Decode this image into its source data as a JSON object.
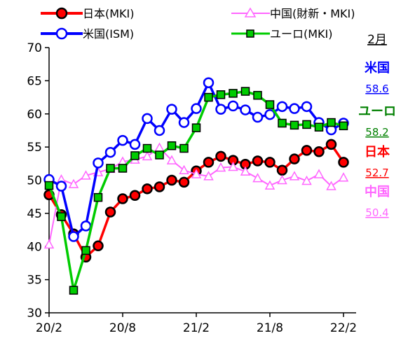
{
  "chart_data": {
    "type": "line",
    "ylim": [
      30,
      70
    ],
    "yticks": [
      30,
      35,
      40,
      45,
      50,
      55,
      60,
      65,
      70
    ],
    "xticks": [
      "20/2",
      "20/8",
      "21/2",
      "21/8",
      "22/2"
    ],
    "grid": false,
    "legend_position": "top",
    "side_panel": {
      "title": "2月",
      "entries": [
        {
          "name": "米国",
          "value": "58.6",
          "color": "#0000ff"
        },
        {
          "name": "ユーロ",
          "value": "58.2",
          "color": "#008000"
        },
        {
          "name": "日本",
          "value": "52.7",
          "color": "#ff0000"
        },
        {
          "name": "中国",
          "value": "50.4",
          "color": "#ff66ff"
        }
      ]
    },
    "series": [
      {
        "name": "日本(MKI)",
        "key": "japan",
        "line_color": "#ff0000",
        "marker": "circle",
        "marker_fill": "#ff0000",
        "marker_stroke": "#000000",
        "values": [
          47.8,
          44.8,
          41.9,
          38.4,
          40.1,
          45.2,
          47.2,
          47.7,
          48.7,
          49.0,
          50.0,
          49.7,
          51.4,
          52.7,
          53.6,
          53.0,
          52.4,
          52.9,
          52.7,
          51.5,
          53.2,
          54.5,
          54.3,
          55.4,
          52.7
        ]
      },
      {
        "name": "中国(財新・MKI)",
        "key": "china",
        "line_color": "#ff66ff",
        "marker": "triangle",
        "marker_fill": "#ffffff",
        "marker_stroke": "#ff66ff",
        "values": [
          40.3,
          50.1,
          49.4,
          50.7,
          51.2,
          51.7,
          52.8,
          53.1,
          53.6,
          54.9,
          53.0,
          51.5,
          50.9,
          50.6,
          51.9,
          52.0,
          51.3,
          50.3,
          49.2,
          50.0,
          50.6,
          49.9,
          50.9,
          49.1,
          50.4
        ]
      },
      {
        "name": "米国(ISM)",
        "key": "us",
        "line_color": "#0000ff",
        "marker": "circle",
        "marker_fill": "#ffffff",
        "marker_stroke": "#0000ff",
        "values": [
          50.1,
          49.1,
          41.5,
          43.1,
          52.6,
          54.2,
          56.0,
          55.4,
          59.3,
          57.5,
          60.7,
          58.7,
          60.8,
          64.7,
          60.7,
          61.2,
          60.6,
          59.5,
          59.9,
          61.1,
          60.8,
          61.1,
          58.7,
          57.6,
          58.6
        ]
      },
      {
        "name": "ユーロ(MKI)",
        "key": "euro",
        "line_color": "#00cc00",
        "marker": "square",
        "marker_fill": "#00cc00",
        "marker_stroke": "#000000",
        "values": [
          49.2,
          44.5,
          33.4,
          39.4,
          47.4,
          51.8,
          51.8,
          53.7,
          54.8,
          53.8,
          55.2,
          54.8,
          57.9,
          62.5,
          62.9,
          63.1,
          63.4,
          62.8,
          61.4,
          58.6,
          58.3,
          58.4,
          58.0,
          58.7,
          58.2
        ]
      }
    ]
  }
}
